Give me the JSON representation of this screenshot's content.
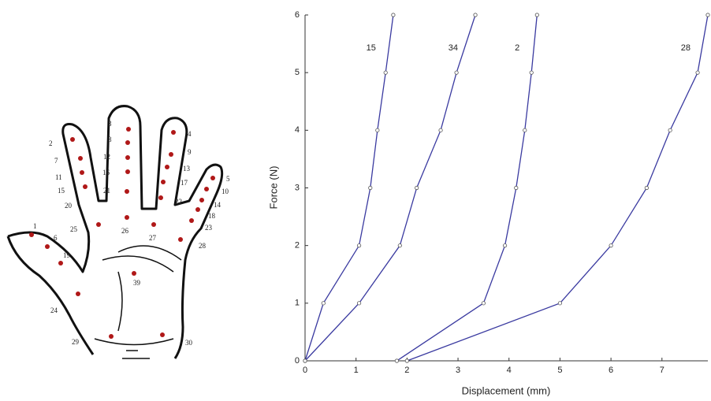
{
  "diagram": {
    "labels": [
      "1",
      "2",
      "3",
      "4",
      "5",
      "6",
      "7",
      "8",
      "9",
      "10",
      "11",
      "12",
      "13",
      "14",
      "15",
      "16",
      "17",
      "18",
      "19",
      "20",
      "21",
      "22",
      "23",
      "24",
      "25",
      "26",
      "27",
      "28",
      "29",
      "30",
      "39"
    ]
  },
  "chart_data": {
    "type": "line",
    "xlabel": "Displacement (mm)",
    "ylabel": "Force (N)",
    "xlim": [
      0,
      7.9
    ],
    "ylim": [
      0,
      6
    ],
    "xticks": [
      0,
      1,
      2,
      3,
      4,
      5,
      6,
      7
    ],
    "yticks": [
      0,
      1,
      2,
      3,
      4,
      5,
      6
    ],
    "series": [
      {
        "name": "15",
        "color": "#3a3aa0",
        "x": [
          0,
          0.36,
          1.06,
          1.28,
          1.42,
          1.58,
          1.73
        ],
        "values": [
          0,
          1,
          2,
          3,
          4,
          5,
          6
        ]
      },
      {
        "name": "34",
        "color": "#3a3aa0",
        "x": [
          0,
          1.06,
          1.86,
          2.19,
          2.66,
          2.97,
          3.34
        ],
        "values": [
          0,
          1,
          2,
          3,
          4,
          5,
          6
        ]
      },
      {
        "name": "2",
        "color": "#3a3aa0",
        "x": [
          1.8,
          3.5,
          3.92,
          4.14,
          4.31,
          4.44,
          4.55
        ],
        "values": [
          0,
          1,
          2,
          3,
          4,
          5,
          6
        ]
      },
      {
        "name": "28",
        "color": "#3a3aa0",
        "x": [
          2.0,
          5.0,
          6.0,
          6.7,
          7.16,
          7.7,
          7.9
        ],
        "values": [
          0,
          1,
          2,
          3,
          4,
          5,
          6
        ]
      }
    ]
  }
}
